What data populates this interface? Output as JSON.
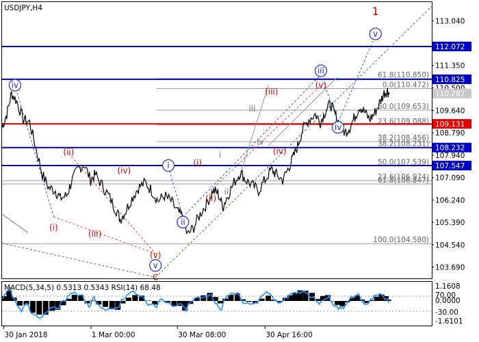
{
  "chart_data": {
    "type": "candlestick",
    "title": "USDJPY,H4",
    "y_axis": {
      "range": [
        103.26,
        113.76
      ],
      "ticks": [
        113.04,
        112.072,
        111.35,
        110.825,
        110.5,
        110.287,
        109.64,
        109.131,
        108.79,
        108.232,
        107.94,
        107.547,
        107.09,
        106.24,
        105.39,
        104.54,
        103.69
      ]
    },
    "x_axis": {
      "ticks": [
        "30 Jan 2018",
        "1 Mar 00:00",
        "30 Mar 08:00",
        "30 Apr 16:00"
      ]
    },
    "grid": false,
    "price_series": [
      [
        0.0,
        109.0
      ],
      [
        0.011,
        109.5
      ],
      [
        0.022,
        110.3
      ],
      [
        0.034,
        110.0
      ],
      [
        0.049,
        109.3
      ],
      [
        0.064,
        109.2
      ],
      [
        0.079,
        108.2
      ],
      [
        0.094,
        107.2
      ],
      [
        0.109,
        106.7
      ],
      [
        0.124,
        106.6
      ],
      [
        0.135,
        106.3
      ],
      [
        0.15,
        106.4
      ],
      [
        0.161,
        106.9
      ],
      [
        0.176,
        107.4
      ],
      [
        0.191,
        107.6
      ],
      [
        0.206,
        107.0
      ],
      [
        0.217,
        107.2
      ],
      [
        0.233,
        106.8
      ],
      [
        0.248,
        106.4
      ],
      [
        0.264,
        105.9
      ],
      [
        0.275,
        105.5
      ],
      [
        0.287,
        105.8
      ],
      [
        0.302,
        106.3
      ],
      [
        0.317,
        106.7
      ],
      [
        0.333,
        106.9
      ],
      [
        0.348,
        106.6
      ],
      [
        0.363,
        106.2
      ],
      [
        0.378,
        106.4
      ],
      [
        0.393,
        106.2
      ],
      [
        0.408,
        105.8
      ],
      [
        0.42,
        105.6
      ],
      [
        0.431,
        104.9
      ],
      [
        0.446,
        105.2
      ],
      [
        0.461,
        105.7
      ],
      [
        0.476,
        106.1
      ],
      [
        0.491,
        106.6
      ],
      [
        0.502,
        106.5
      ],
      [
        0.514,
        106.0
      ],
      [
        0.525,
        106.4
      ],
      [
        0.54,
        106.9
      ],
      [
        0.555,
        107.3
      ],
      [
        0.567,
        107.0
      ],
      [
        0.582,
        106.8
      ],
      [
        0.597,
        106.6
      ],
      [
        0.612,
        107.0
      ],
      [
        0.627,
        107.4
      ],
      [
        0.638,
        107.2
      ],
      [
        0.653,
        107.0
      ],
      [
        0.665,
        107.4
      ],
      [
        0.676,
        107.8
      ],
      [
        0.688,
        108.3
      ],
      [
        0.699,
        108.9
      ],
      [
        0.714,
        109.3
      ],
      [
        0.729,
        109.5
      ],
      [
        0.741,
        109.2
      ],
      [
        0.752,
        109.6
      ],
      [
        0.764,
        109.9
      ],
      [
        0.775,
        109.5
      ],
      [
        0.786,
        109.1
      ],
      [
        0.798,
        108.8
      ],
      [
        0.809,
        109.0
      ],
      [
        0.821,
        109.4
      ],
      [
        0.832,
        109.8
      ],
      [
        0.843,
        109.6
      ],
      [
        0.855,
        109.3
      ],
      [
        0.866,
        109.5
      ],
      [
        0.878,
        109.9
      ],
      [
        0.889,
        110.3
      ],
      [
        0.897,
        110.4
      ],
      [
        0.901,
        110.25
      ]
    ],
    "horizontal_levels": [
      {
        "value": 112.072,
        "color": "#0000c8",
        "width": 2
      },
      {
        "value": 110.825,
        "color": "#0000c8",
        "width": 2
      },
      {
        "value": 109.131,
        "color": "#e00000",
        "width": 2
      },
      {
        "value": 108.232,
        "color": "#0000c8",
        "width": 2
      },
      {
        "value": 107.547,
        "color": "#0000c8",
        "width": 2
      }
    ],
    "price_labels": [
      {
        "text": "113.040",
        "value": 113.04,
        "style": "plain"
      },
      {
        "text": "112.072",
        "value": 112.072,
        "style": "blue"
      },
      {
        "text": "111.350",
        "value": 111.35,
        "style": "plain"
      },
      {
        "text": "110.825",
        "value": 110.825,
        "style": "blue"
      },
      {
        "text": "110.500",
        "value": 110.5,
        "style": "plain"
      },
      {
        "text": "110.287",
        "value": 110.287,
        "style": "grey"
      },
      {
        "text": "109.640",
        "value": 109.64,
        "style": "plain"
      },
      {
        "text": "109.131",
        "value": 109.131,
        "style": "red"
      },
      {
        "text": "108.790",
        "value": 108.79,
        "style": "plain"
      },
      {
        "text": "108.232",
        "value": 108.232,
        "style": "blue"
      },
      {
        "text": "107.940",
        "value": 107.94,
        "style": "plain"
      },
      {
        "text": "107.547",
        "value": 107.547,
        "style": "blue"
      },
      {
        "text": "107.090",
        "value": 107.09,
        "style": "plain"
      },
      {
        "text": "106.240",
        "value": 106.24,
        "style": "plain"
      },
      {
        "text": "105.390",
        "value": 105.39,
        "style": "plain"
      },
      {
        "text": "104.540",
        "value": 104.54,
        "style": "plain"
      },
      {
        "text": "103.690",
        "value": 103.69,
        "style": "plain"
      }
    ],
    "fib_levels": [
      {
        "text": "61.8(110.850)",
        "value": 110.85,
        "x_from": 0.36
      },
      {
        "text": "0.0(110.472)",
        "value": 110.472,
        "x_from": 0.36
      },
      {
        "text": "50.0(109.653)",
        "value": 109.653,
        "x_from": 0.36
      },
      {
        "text": "23.6(109.088)",
        "value": 109.088,
        "x_from": 0.36
      },
      {
        "text": "38.2(108.456)",
        "value": 108.456,
        "x_from": 0.36
      },
      {
        "text": "38.2(108.231)",
        "value": 108.231,
        "x_from": 0.36
      },
      {
        "text": "50.0(107.539)",
        "value": 107.539,
        "x_from": 0.0
      },
      {
        "text": "23.6(106.974)",
        "value": 106.974,
        "x_from": 0.0
      },
      {
        "text": "61.8(106.847)",
        "value": 106.847,
        "x_from": 0.0
      },
      {
        "text": "100.0(104.580)",
        "value": 104.58,
        "x_from": 0.0
      }
    ],
    "wave_labels": [
      {
        "text": "1",
        "x": 0.869,
        "y": 113.4,
        "style": "red-big"
      },
      {
        "text": "v",
        "x": 0.869,
        "y": 112.55,
        "style": "circle-blue"
      },
      {
        "text": "iii",
        "x": 0.742,
        "y": 111.15,
        "style": "circle-blue"
      },
      {
        "text": "iv",
        "x": 0.782,
        "y": 109.0,
        "style": "circle-blue"
      },
      {
        "text": "iv",
        "x": 0.03,
        "y": 110.6,
        "style": "circle-blue"
      },
      {
        "text": "i",
        "x": 0.387,
        "y": 107.55,
        "style": "circle-blue"
      },
      {
        "text": "ii",
        "x": 0.421,
        "y": 105.4,
        "style": "circle-blue"
      },
      {
        "text": "v",
        "x": 0.357,
        "y": 103.75,
        "style": "circle-blue"
      },
      {
        "text": "(v)",
        "x": 0.742,
        "y": 110.6,
        "style": "red"
      },
      {
        "text": "(iii)",
        "x": 0.627,
        "y": 110.35,
        "style": "red"
      },
      {
        "text": "(iv)",
        "x": 0.646,
        "y": 108.1,
        "style": "red"
      },
      {
        "text": "(i)",
        "x": 0.455,
        "y": 107.65,
        "style": "red"
      },
      {
        "text": "(ii)",
        "x": 0.486,
        "y": 106.3,
        "style": "red"
      },
      {
        "text": "(ii)",
        "x": 0.155,
        "y": 108.05,
        "style": "red"
      },
      {
        "text": "(iv)",
        "x": 0.284,
        "y": 107.35,
        "style": "red"
      },
      {
        "text": "(i)",
        "x": 0.12,
        "y": 105.2,
        "style": "red"
      },
      {
        "text": "(iii)",
        "x": 0.216,
        "y": 104.95,
        "style": "red"
      },
      {
        "text": "(v)",
        "x": 0.357,
        "y": 104.15,
        "style": "red"
      },
      {
        "text": "C",
        "x": 0.357,
        "y": 103.3,
        "style": "red"
      },
      {
        "text": "iii",
        "x": 0.582,
        "y": 109.7,
        "style": "grey"
      },
      {
        "text": "iv",
        "x": 0.601,
        "y": 108.45,
        "style": "grey"
      },
      {
        "text": "ii",
        "x": 0.522,
        "y": 106.55,
        "style": "grey"
      },
      {
        "text": "i",
        "x": 0.507,
        "y": 107.95,
        "style": "grey"
      }
    ],
    "indicator": {
      "label": "MACD(5,34,5) 0.5313 0.5343 RSI(14) 68.48",
      "ticks": [
        "1.1608",
        "70.00",
        "0.0000",
        "-30.00",
        "-1.6101"
      ]
    }
  }
}
